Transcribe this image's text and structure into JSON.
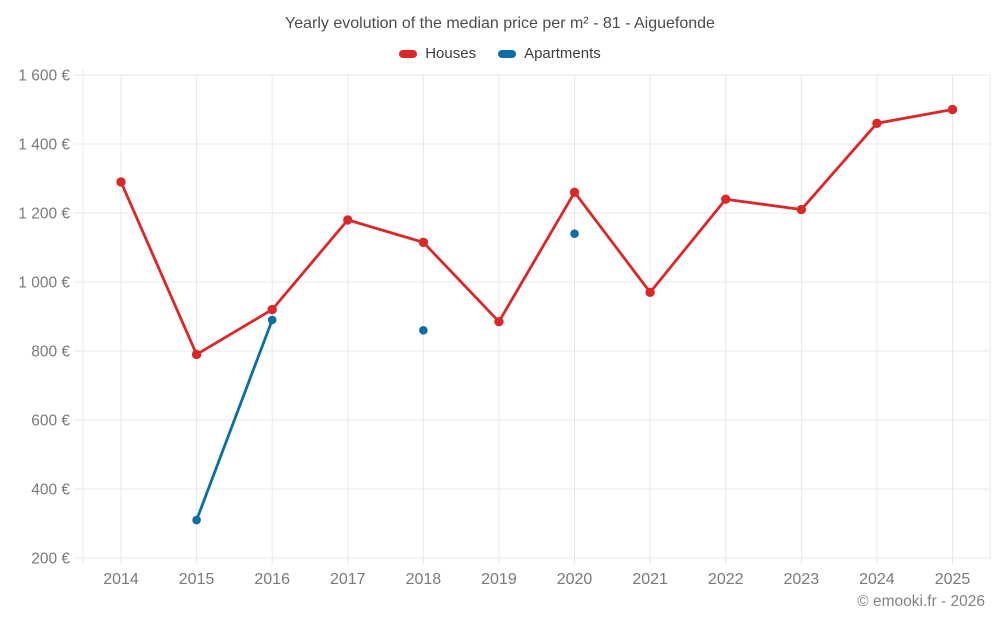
{
  "title": "Yearly evolution of the median price per m² - 81 - Aiguefonde",
  "footer": "© emooki.fr - 2026",
  "legend": [
    {
      "label": "Houses",
      "color": "#dc2729"
    },
    {
      "label": "Apartments",
      "color": "#0d6ea6"
    }
  ],
  "colors": {
    "grid": "#e8e8e8",
    "axis_text": "#7a7a7a",
    "title_text": "#4c4c4c",
    "legend_text": "#3d3d3d",
    "footer_text": "#828282",
    "background": "#ffffff"
  },
  "chart_data": {
    "type": "line",
    "title": "Yearly evolution of the median price per m² - 81 - Aiguefonde",
    "categories": [
      "2014",
      "2015",
      "2016",
      "2017",
      "2018",
      "2019",
      "2020",
      "2021",
      "2022",
      "2023",
      "2024",
      "2025"
    ],
    "series": [
      {
        "name": "Houses",
        "color": "#dc2729",
        "values": [
          1290,
          790,
          920,
          1180,
          1115,
          885,
          1260,
          970,
          1240,
          1210,
          1460,
          1500
        ]
      },
      {
        "name": "Apartments",
        "color": "#0d6ea6",
        "values": [
          null,
          310,
          890,
          null,
          860,
          null,
          1140,
          null,
          null,
          null,
          null,
          null
        ]
      }
    ],
    "xlabel": "",
    "ylabel": "",
    "ylim": [
      200,
      1600
    ],
    "y_ticks": [
      {
        "value": 200,
        "label": "200 €"
      },
      {
        "value": 400,
        "label": "400 €"
      },
      {
        "value": 600,
        "label": "600 €"
      },
      {
        "value": 800,
        "label": "800 €"
      },
      {
        "value": 1000,
        "label": "1 000 €"
      },
      {
        "value": 1200,
        "label": "1 200 €"
      },
      {
        "value": 1400,
        "label": "1 400 €"
      },
      {
        "value": 1600,
        "label": "1 600 €"
      }
    ],
    "grid": true,
    "legend_position": "top",
    "marker": "circle"
  }
}
